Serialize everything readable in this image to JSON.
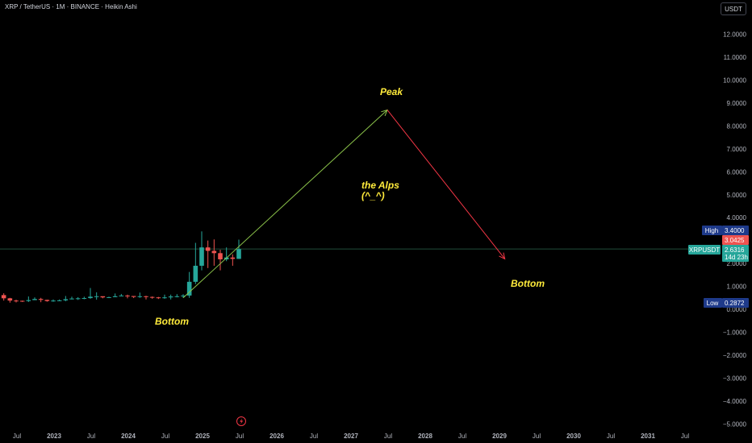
{
  "header": {
    "title": "XRP / TetherUS · 1M · BINANCE · Heikin Ashi",
    "currency_button": "USDT"
  },
  "annotations": {
    "peak": "Peak",
    "alps_line1": "the Alps",
    "alps_line2": "(^_^)",
    "bottom_left": "Bottom",
    "bottom_right": "Bottom"
  },
  "badges": {
    "high_label": "High",
    "high_value": "3.4000",
    "prev_close_value": "3.0425",
    "symbol_label": "XRPUSDT",
    "last_value": "2.6316",
    "countdown": "14d 23h",
    "low_label": "Low",
    "low_value": "0.2872"
  },
  "colors": {
    "bg": "#000000",
    "up": "#26a69a",
    "down": "#ef5350",
    "badge_blue": "#1e3a8a",
    "annotation": "#ffeb3b",
    "arrow_up": "#8bc34a",
    "arrow_down": "#f23645"
  },
  "y_axis_ticks": [
    "12.0000",
    "11.0000",
    "10.0000",
    "9.0000",
    "8.0000",
    "7.0000",
    "6.0000",
    "5.0000",
    "4.0000",
    "3.0000",
    "2.0000",
    "1.0000",
    "0.0000",
    "−1.0000",
    "−2.0000",
    "−3.0000",
    "−4.0000",
    "−5.0000"
  ],
  "x_axis_ticks": [
    "Jul",
    "2023",
    "Jul",
    "2024",
    "Jul",
    "2025",
    "Jul",
    "2026",
    "Jul",
    "2027",
    "Jul",
    "2028",
    "Jul",
    "2029",
    "Jul",
    "2030",
    "Jul",
    "2031",
    "Jul"
  ],
  "icons": {
    "event": "lightning-icon"
  },
  "chart_data": {
    "type": "candlestick",
    "title": "XRP / TetherUS · 1M · BINANCE · Heikin Ashi",
    "ylim": [
      -5.2,
      12.6
    ],
    "candles": [
      {
        "d": "2022-01",
        "o": 0.82,
        "c": 0.74,
        "h": 0.85,
        "l": 0.7
      },
      {
        "d": "2022-02",
        "o": 0.74,
        "c": 0.7,
        "h": 0.9,
        "l": 0.6
      },
      {
        "d": "2022-03",
        "o": 0.7,
        "c": 0.72,
        "h": 0.88,
        "l": 0.6
      },
      {
        "d": "2022-04",
        "o": 0.72,
        "c": 0.62,
        "h": 0.83,
        "l": 0.58
      },
      {
        "d": "2022-05",
        "o": 0.62,
        "c": 0.48,
        "h": 0.7,
        "l": 0.38
      },
      {
        "d": "2022-06",
        "o": 0.48,
        "c": 0.38,
        "h": 0.5,
        "l": 0.29
      },
      {
        "d": "2022-07",
        "o": 0.38,
        "c": 0.37,
        "h": 0.42,
        "l": 0.3
      },
      {
        "d": "2022-08",
        "o": 0.37,
        "c": 0.36,
        "h": 0.38,
        "l": 0.32
      },
      {
        "d": "2022-09",
        "o": 0.36,
        "c": 0.4,
        "h": 0.56,
        "l": 0.32
      },
      {
        "d": "2022-10",
        "o": 0.4,
        "c": 0.45,
        "h": 0.52,
        "l": 0.42
      },
      {
        "d": "2022-11",
        "o": 0.45,
        "c": 0.41,
        "h": 0.5,
        "l": 0.31
      },
      {
        "d": "2022-12",
        "o": 0.41,
        "c": 0.36,
        "h": 0.42,
        "l": 0.33
      },
      {
        "d": "2023-01",
        "o": 0.36,
        "c": 0.38,
        "h": 0.43,
        "l": 0.33
      },
      {
        "d": "2023-02",
        "o": 0.38,
        "c": 0.39,
        "h": 0.43,
        "l": 0.36
      },
      {
        "d": "2023-03",
        "o": 0.39,
        "c": 0.44,
        "h": 0.58,
        "l": 0.35
      },
      {
        "d": "2023-04",
        "o": 0.44,
        "c": 0.47,
        "h": 0.55,
        "l": 0.43
      },
      {
        "d": "2023-05",
        "o": 0.47,
        "c": 0.48,
        "h": 0.53,
        "l": 0.41
      },
      {
        "d": "2023-06",
        "o": 0.48,
        "c": 0.49,
        "h": 0.55,
        "l": 0.44
      },
      {
        "d": "2023-07",
        "o": 0.49,
        "c": 0.55,
        "h": 0.93,
        "l": 0.46
      },
      {
        "d": "2023-08",
        "o": 0.55,
        "c": 0.57,
        "h": 0.74,
        "l": 0.42
      },
      {
        "d": "2023-09",
        "o": 0.57,
        "c": 0.52,
        "h": 0.55,
        "l": 0.48
      },
      {
        "d": "2023-10",
        "o": 0.52,
        "c": 0.53,
        "h": 0.55,
        "l": 0.49
      },
      {
        "d": "2023-11",
        "o": 0.53,
        "c": 0.57,
        "h": 0.69,
        "l": 0.53
      },
      {
        "d": "2023-12",
        "o": 0.57,
        "c": 0.6,
        "h": 0.67,
        "l": 0.57
      },
      {
        "d": "2024-01",
        "o": 0.6,
        "c": 0.58,
        "h": 0.64,
        "l": 0.48
      },
      {
        "d": "2024-02",
        "o": 0.58,
        "c": 0.54,
        "h": 0.58,
        "l": 0.49
      },
      {
        "d": "2024-03",
        "o": 0.54,
        "c": 0.57,
        "h": 0.73,
        "l": 0.5
      },
      {
        "d": "2024-04",
        "o": 0.57,
        "c": 0.54,
        "h": 0.59,
        "l": 0.43
      },
      {
        "d": "2024-05",
        "o": 0.54,
        "c": 0.52,
        "h": 0.56,
        "l": 0.46
      },
      {
        "d": "2024-06",
        "o": 0.52,
        "c": 0.5,
        "h": 0.54,
        "l": 0.45
      },
      {
        "d": "2024-07",
        "o": 0.5,
        "c": 0.52,
        "h": 0.64,
        "l": 0.46
      },
      {
        "d": "2024-08",
        "o": 0.52,
        "c": 0.56,
        "h": 0.64,
        "l": 0.43
      },
      {
        "d": "2024-09",
        "o": 0.56,
        "c": 0.57,
        "h": 0.66,
        "l": 0.52
      },
      {
        "d": "2024-10",
        "o": 0.57,
        "c": 0.6,
        "h": 0.66,
        "l": 0.5
      },
      {
        "d": "2024-11",
        "o": 0.6,
        "c": 1.2,
        "h": 1.63,
        "l": 0.5
      },
      {
        "d": "2024-12",
        "o": 1.2,
        "c": 1.9,
        "h": 2.9,
        "l": 1.1
      },
      {
        "d": "2025-01",
        "o": 1.9,
        "c": 2.7,
        "h": 3.4,
        "l": 1.7
      },
      {
        "d": "2025-02",
        "o": 2.7,
        "c": 2.55,
        "h": 3.0,
        "l": 1.8
      },
      {
        "d": "2025-03",
        "o": 2.55,
        "c": 2.45,
        "h": 3.05,
        "l": 1.9
      },
      {
        "d": "2025-04",
        "o": 2.45,
        "c": 2.18,
        "h": 2.6,
        "l": 1.7
      },
      {
        "d": "2025-05",
        "o": 2.18,
        "c": 2.26,
        "h": 2.7,
        "l": 2.1
      },
      {
        "d": "2025-06",
        "o": 2.26,
        "c": 2.2,
        "h": 2.4,
        "l": 1.9
      },
      {
        "d": "2025-07",
        "o": 2.2,
        "c": 2.63,
        "h": 3.04,
        "l": 2.2
      }
    ],
    "drawings": [
      {
        "type": "arrow",
        "from": {
          "d": "2024-10",
          "v": 0.5
        },
        "to": {
          "d": "2027-07",
          "v": 8.7
        }
      },
      {
        "type": "arrow",
        "from": {
          "d": "2027-07",
          "v": 8.7
        },
        "to": {
          "d": "2029-02",
          "v": 2.2
        }
      },
      {
        "type": "horizontal_line",
        "v": 2.63
      }
    ]
  }
}
